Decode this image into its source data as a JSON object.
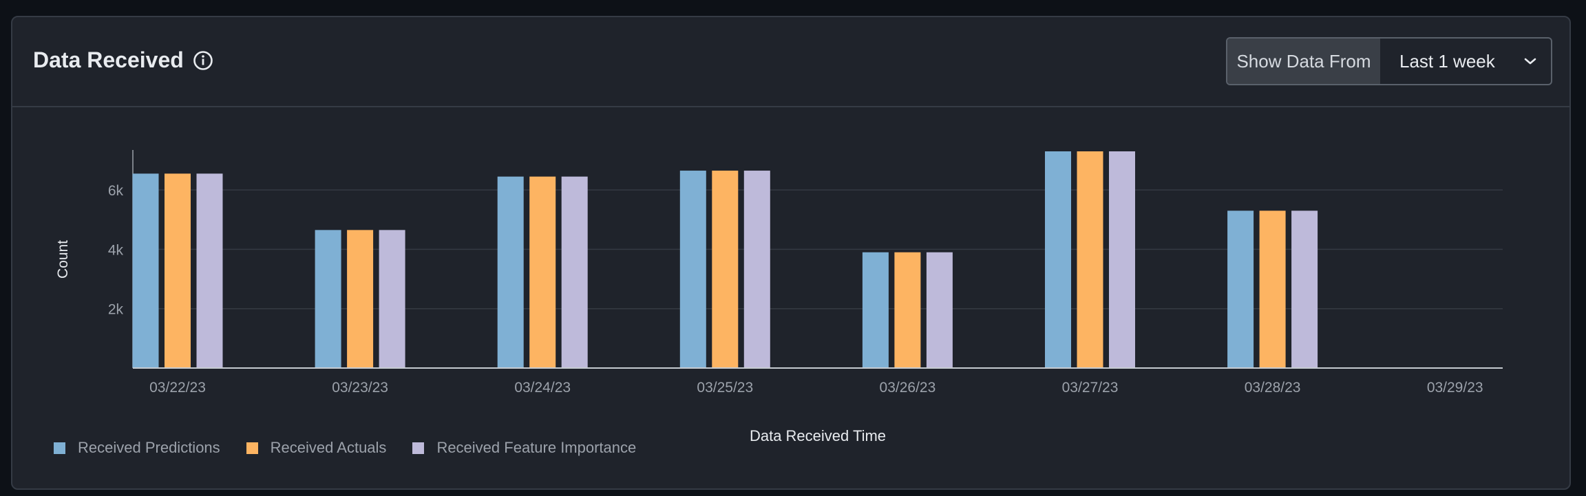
{
  "header": {
    "title": "Data Received",
    "info_icon": "info-icon",
    "range_label": "Show Data From",
    "range_value": "Last 1 week",
    "chevron_icon": "chevron-down-icon"
  },
  "colors": {
    "predictions": "#7fb0d4",
    "actuals": "#fdb462",
    "feature_importance": "#bebada"
  },
  "chart_data": {
    "type": "bar",
    "categories": [
      "03/22/23",
      "03/23/23",
      "03/24/23",
      "03/25/23",
      "03/26/23",
      "03/27/23",
      "03/28/23",
      "03/29/23"
    ],
    "series": [
      {
        "name": "Received Predictions",
        "values": [
          6550,
          4650,
          6450,
          6650,
          3900,
          7300,
          5300,
          null
        ]
      },
      {
        "name": "Received Actuals",
        "values": [
          6550,
          4650,
          6450,
          6650,
          3900,
          7300,
          5300,
          null
        ]
      },
      {
        "name": "Received Feature Importance",
        "values": [
          6550,
          4650,
          6450,
          6650,
          3900,
          7300,
          5300,
          null
        ]
      }
    ],
    "title": "",
    "xlabel": "Data Received Time",
    "ylabel": "Count",
    "yticks": [
      {
        "value": 2000,
        "label": "2k"
      },
      {
        "value": 4000,
        "label": "4k"
      },
      {
        "value": 6000,
        "label": "6k"
      }
    ],
    "ylim": [
      0,
      7300
    ],
    "grid": true,
    "legend_position": "bottom-left"
  }
}
